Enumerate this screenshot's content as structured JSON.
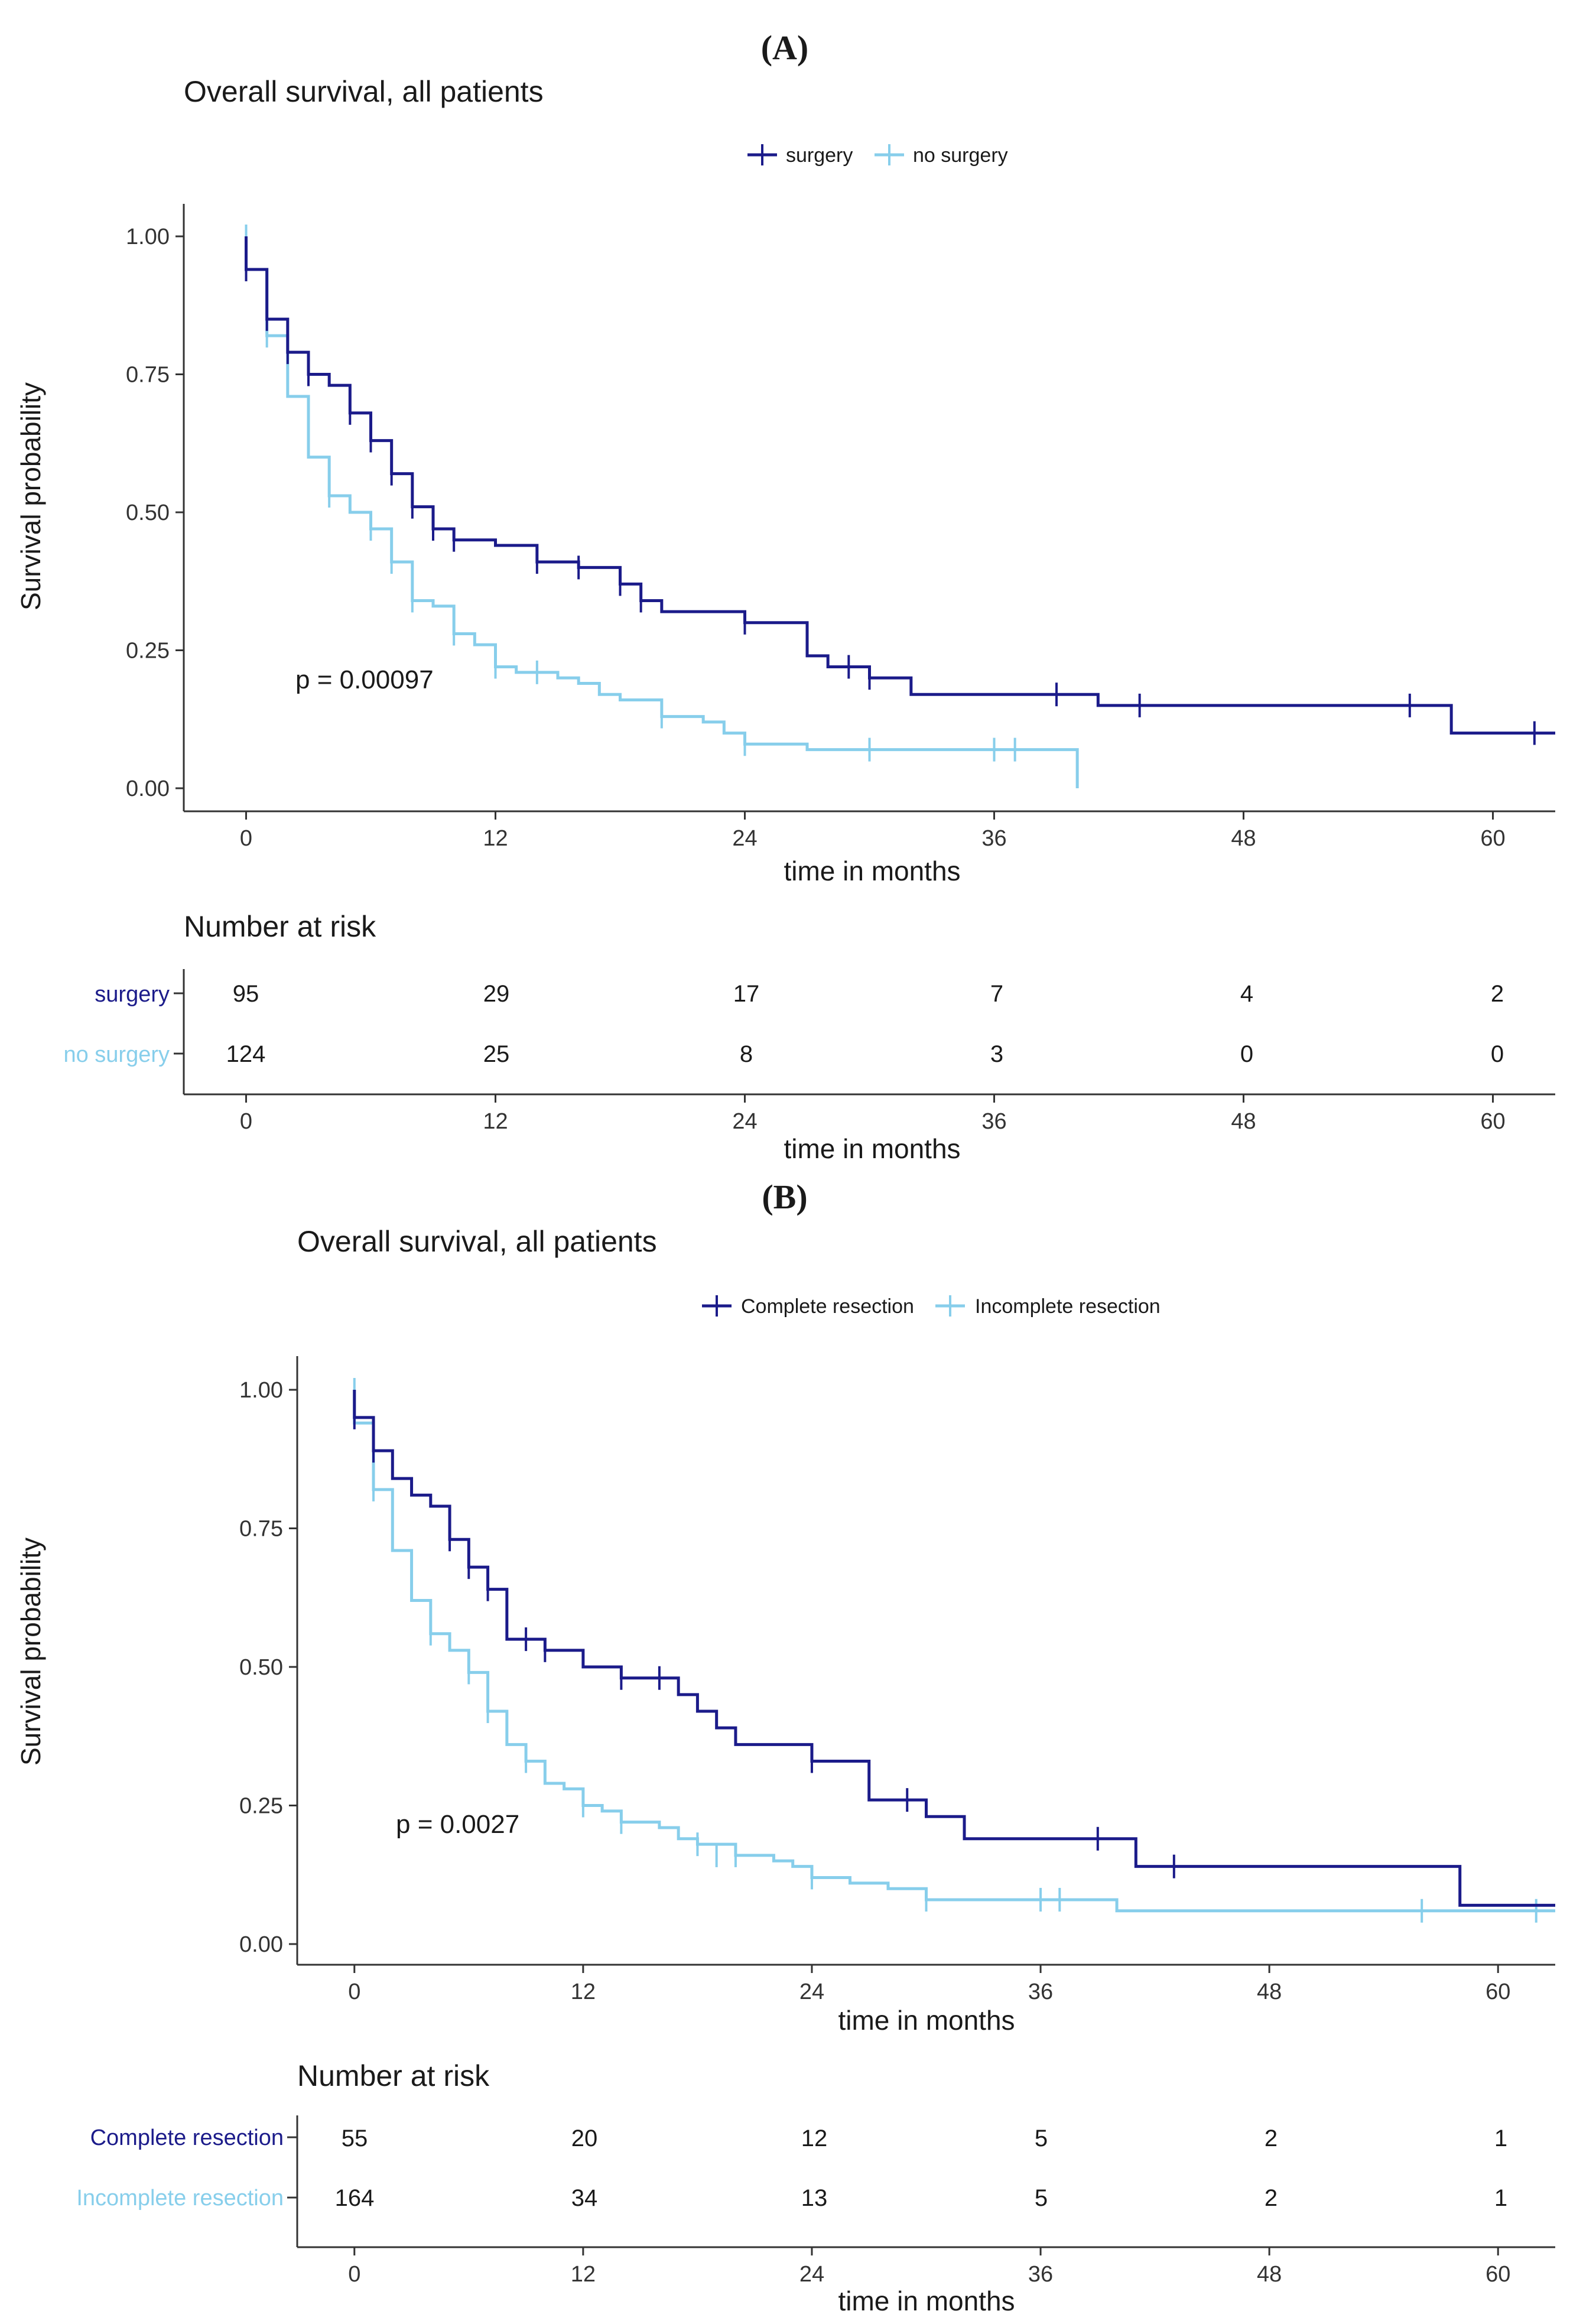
{
  "colors": {
    "group1": "#1b1b8a",
    "group2": "#87ceeb",
    "axis": "#333333"
  },
  "chart_data": [
    {
      "type": "line",
      "panel_label": "(A)",
      "title": "Overall survival, all patients",
      "xlabel": "time in months",
      "ylabel": "Survival probability",
      "xlim": [
        -3,
        63
      ],
      "ylim": [
        0,
        1
      ],
      "xticks": [
        "0",
        "12",
        "24",
        "36",
        "48",
        "60"
      ],
      "yticks": [
        "0.00",
        "0.25",
        "0.50",
        "0.75",
        "1.00"
      ],
      "p_value": "p = 0.00097",
      "legend": [
        "surgery",
        "no surgery"
      ],
      "risk_table": {
        "title": "Number at risk",
        "xlabel": "time in months",
        "groups": [
          {
            "name": "surgery",
            "values": [
              "95",
              "29",
              "17",
              "7",
              "4",
              "2"
            ]
          },
          {
            "name": "no surgery",
            "values": [
              "124",
              "25",
              "8",
              "3",
              "0",
              "0"
            ]
          }
        ]
      },
      "series": [
        {
          "name": "surgery",
          "x": [
            0,
            1,
            2,
            3,
            4,
            5,
            6,
            7,
            8,
            9,
            10,
            12,
            14,
            16,
            18,
            19,
            20,
            22,
            24,
            27,
            28,
            30,
            32,
            36,
            41,
            50,
            58,
            63
          ],
          "y": [
            0.94,
            0.85,
            0.79,
            0.75,
            0.73,
            0.68,
            0.63,
            0.57,
            0.51,
            0.47,
            0.45,
            0.44,
            0.41,
            0.4,
            0.37,
            0.34,
            0.32,
            0.32,
            0.3,
            0.24,
            0.22,
            0.2,
            0.17,
            0.17,
            0.15,
            0.15,
            0.1,
            0.1
          ],
          "censor_x": [
            0,
            1,
            2,
            3,
            5,
            6,
            7,
            8,
            9,
            10,
            14,
            16,
            18,
            19,
            24,
            29,
            30,
            39,
            43,
            56,
            62
          ],
          "censor_y": [
            0.94,
            0.85,
            0.79,
            0.75,
            0.68,
            0.63,
            0.57,
            0.51,
            0.47,
            0.45,
            0.41,
            0.4,
            0.37,
            0.34,
            0.3,
            0.22,
            0.2,
            0.17,
            0.15,
            0.15,
            0.1
          ]
        },
        {
          "name": "no surgery",
          "x": [
            0,
            1,
            2,
            3,
            4,
            5,
            6,
            7,
            8,
            9,
            10,
            11,
            12,
            13,
            15,
            16,
            17,
            18,
            20,
            22,
            23,
            24,
            27,
            36,
            40
          ],
          "y": [
            0.94,
            0.82,
            0.71,
            0.6,
            0.53,
            0.5,
            0.47,
            0.41,
            0.34,
            0.33,
            0.28,
            0.26,
            0.22,
            0.21,
            0.2,
            0.19,
            0.17,
            0.16,
            0.13,
            0.12,
            0.1,
            0.08,
            0.07,
            0.07,
            0.0
          ],
          "censor_x": [
            0,
            1,
            4,
            6,
            7,
            8,
            10,
            12,
            14,
            20,
            24,
            30,
            36,
            37
          ],
          "censor_y": [
            1.0,
            0.82,
            0.53,
            0.47,
            0.41,
            0.34,
            0.28,
            0.22,
            0.21,
            0.13,
            0.08,
            0.07,
            0.07,
            0.07
          ]
        }
      ]
    },
    {
      "type": "line",
      "panel_label": "(B)",
      "title": "Overall survival, all patients",
      "xlabel": "time in months",
      "ylabel": "Survival probability",
      "xlim": [
        -3,
        63
      ],
      "ylim": [
        0,
        1
      ],
      "xticks": [
        "0",
        "12",
        "24",
        "36",
        "48",
        "60"
      ],
      "yticks": [
        "0.00",
        "0.25",
        "0.50",
        "0.75",
        "1.00"
      ],
      "p_value": "p = 0.0027",
      "legend": [
        "Complete resection",
        "Incomplete resection"
      ],
      "risk_table": {
        "title": "Number at risk",
        "xlabel": "time in months",
        "groups": [
          {
            "name": "Complete resection",
            "values": [
              "55",
              "20",
              "12",
              "5",
              "2",
              "1"
            ]
          },
          {
            "name": "Incomplete resection",
            "values": [
              "164",
              "34",
              "13",
              "5",
              "2",
              "1"
            ]
          }
        ]
      },
      "series": [
        {
          "name": "Complete resection",
          "x": [
            0,
            1,
            2,
            3,
            4,
            5,
            6,
            7,
            8,
            9,
            10,
            12,
            14,
            17,
            18,
            19,
            20,
            24,
            27,
            30,
            32,
            41,
            58,
            63
          ],
          "y": [
            0.95,
            0.89,
            0.84,
            0.81,
            0.79,
            0.73,
            0.68,
            0.64,
            0.55,
            0.55,
            0.53,
            0.5,
            0.48,
            0.45,
            0.42,
            0.39,
            0.36,
            0.33,
            0.26,
            0.23,
            0.19,
            0.14,
            0.07,
            0.07
          ],
          "censor_x": [
            0,
            1,
            5,
            6,
            7,
            9,
            10,
            14,
            16,
            24,
            29,
            39,
            43
          ],
          "censor_y": [
            0.95,
            0.89,
            0.73,
            0.68,
            0.64,
            0.55,
            0.53,
            0.48,
            0.48,
            0.33,
            0.26,
            0.19,
            0.14
          ]
        },
        {
          "name": "Incomplete resection",
          "x": [
            0,
            1,
            2,
            3,
            4,
            5,
            6,
            7,
            8,
            9,
            10,
            11,
            12,
            13,
            14,
            15,
            16,
            17,
            18,
            20,
            22,
            23,
            24,
            26,
            28,
            30,
            36,
            40,
            63
          ],
          "y": [
            0.94,
            0.82,
            0.71,
            0.62,
            0.56,
            0.53,
            0.49,
            0.42,
            0.36,
            0.33,
            0.29,
            0.28,
            0.25,
            0.24,
            0.22,
            0.22,
            0.21,
            0.19,
            0.18,
            0.16,
            0.15,
            0.14,
            0.12,
            0.11,
            0.1,
            0.08,
            0.08,
            0.06,
            0.06
          ],
          "censor_x": [
            0,
            1,
            4,
            6,
            7,
            9,
            12,
            14,
            18,
            19,
            20,
            24,
            30,
            36,
            37,
            56,
            62
          ],
          "censor_y": [
            1.0,
            0.82,
            0.56,
            0.49,
            0.42,
            0.33,
            0.25,
            0.22,
            0.18,
            0.16,
            0.16,
            0.12,
            0.08,
            0.08,
            0.08,
            0.06,
            0.06
          ]
        }
      ]
    }
  ]
}
